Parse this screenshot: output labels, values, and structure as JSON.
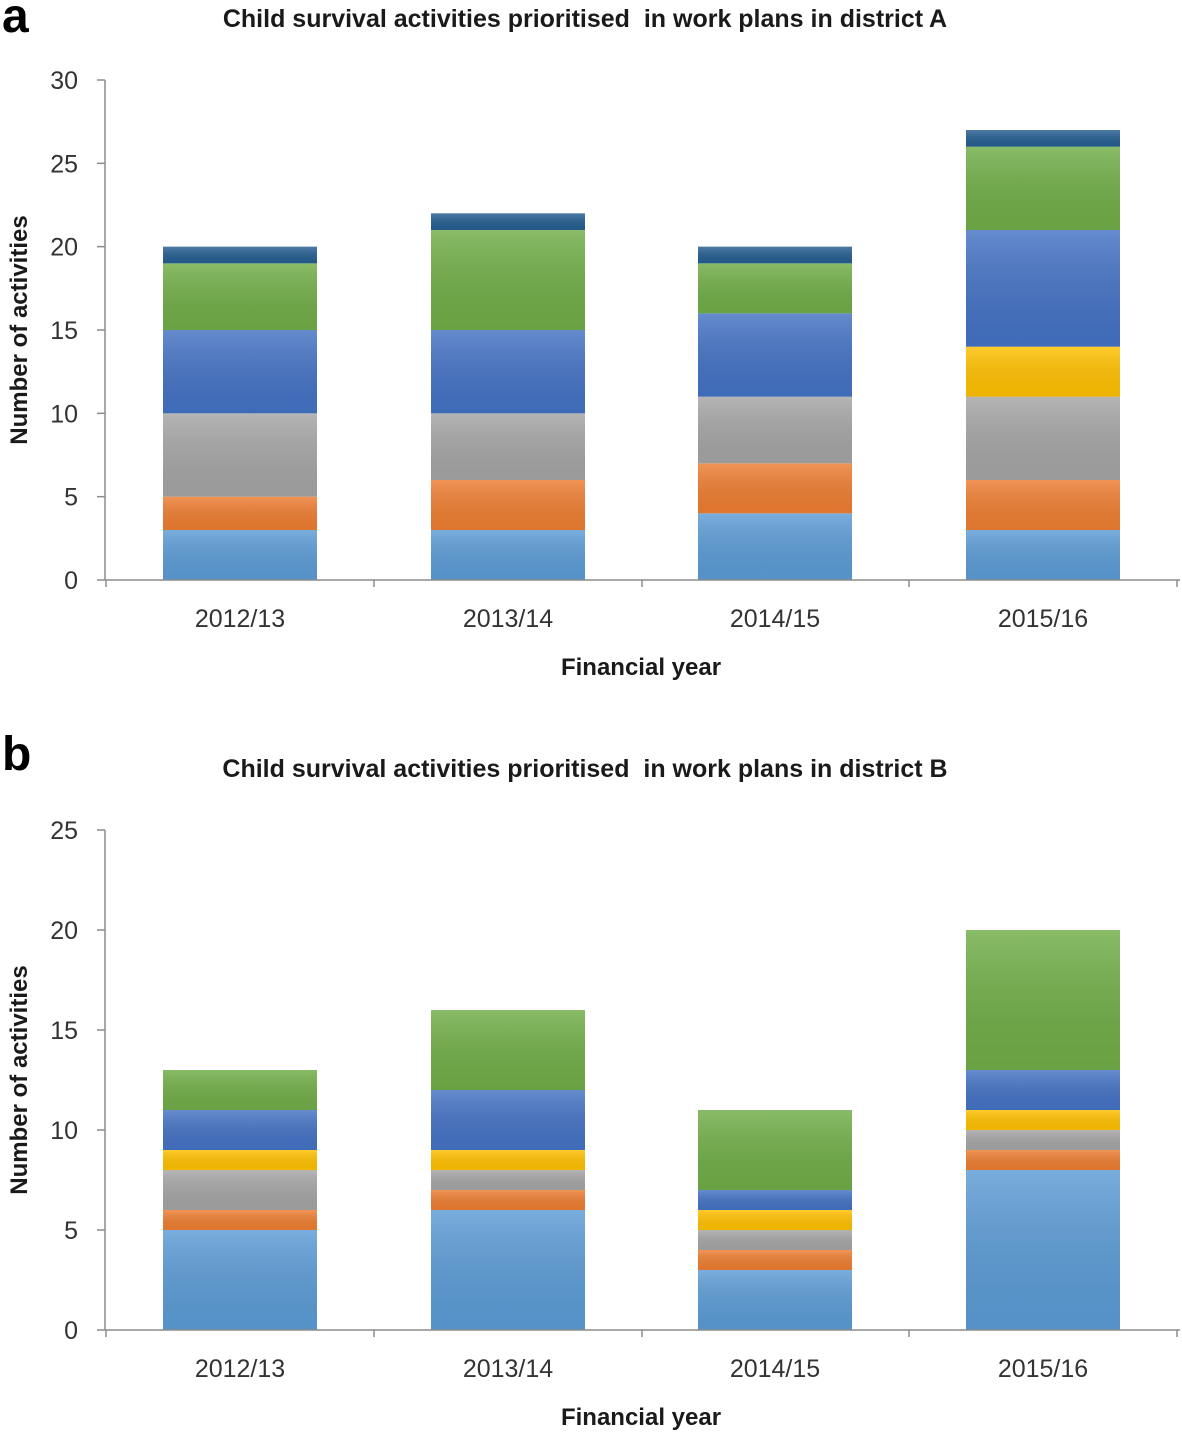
{
  "chart_data": [
    {
      "panel": "a",
      "type": "bar",
      "stacked": true,
      "title": "Child survival activities prioritised  in work plans in district A",
      "xlabel": "Financial year",
      "ylabel": "Number of activities",
      "ylim": [
        0,
        30
      ],
      "yticks": [
        0,
        5,
        10,
        15,
        20,
        25,
        30
      ],
      "grid": false,
      "categories": [
        "2012/13",
        "2013/14",
        "2014/15",
        "2015/16"
      ],
      "series": [
        {
          "name": "light-blue",
          "color": "#5b9bd5",
          "values": [
            3,
            3,
            4,
            3
          ]
        },
        {
          "name": "orange",
          "color": "#ed7d31",
          "values": [
            2,
            3,
            3,
            3
          ]
        },
        {
          "name": "gray",
          "color": "#a5a5a5",
          "values": [
            5,
            4,
            4,
            5
          ]
        },
        {
          "name": "yellow",
          "color": "#ffc000",
          "values": [
            0,
            0,
            0,
            3
          ]
        },
        {
          "name": "blue",
          "color": "#4472c4",
          "values": [
            5,
            5,
            5,
            7
          ]
        },
        {
          "name": "green",
          "color": "#70ad47",
          "values": [
            4,
            6,
            3,
            5
          ]
        },
        {
          "name": "dark-blue",
          "color": "#255e91",
          "values": [
            1,
            1,
            1,
            1
          ]
        }
      ]
    },
    {
      "panel": "b",
      "type": "bar",
      "stacked": true,
      "title": "Child survival activities prioritised  in work plans in district B",
      "xlabel": "Financial year",
      "ylabel": "Number of activities",
      "ylim": [
        0,
        25
      ],
      "yticks": [
        0,
        5,
        10,
        15,
        20,
        25
      ],
      "grid": false,
      "categories": [
        "2012/13",
        "2013/14",
        "2014/15",
        "2015/16"
      ],
      "series": [
        {
          "name": "light-blue",
          "color": "#5b9bd5",
          "values": [
            5,
            6,
            3,
            8
          ]
        },
        {
          "name": "orange",
          "color": "#ed7d31",
          "values": [
            1,
            1,
            1,
            1
          ]
        },
        {
          "name": "gray",
          "color": "#a5a5a5",
          "values": [
            2,
            1,
            1,
            1
          ]
        },
        {
          "name": "yellow",
          "color": "#ffc000",
          "values": [
            1,
            1,
            1,
            1
          ]
        },
        {
          "name": "blue",
          "color": "#4472c4",
          "values": [
            2,
            3,
            1,
            2
          ]
        },
        {
          "name": "green",
          "color": "#70ad47",
          "values": [
            2,
            4,
            4,
            7
          ]
        },
        {
          "name": "dark-blue",
          "color": "#255e91",
          "values": [
            0,
            0,
            0,
            0
          ]
        }
      ]
    }
  ]
}
